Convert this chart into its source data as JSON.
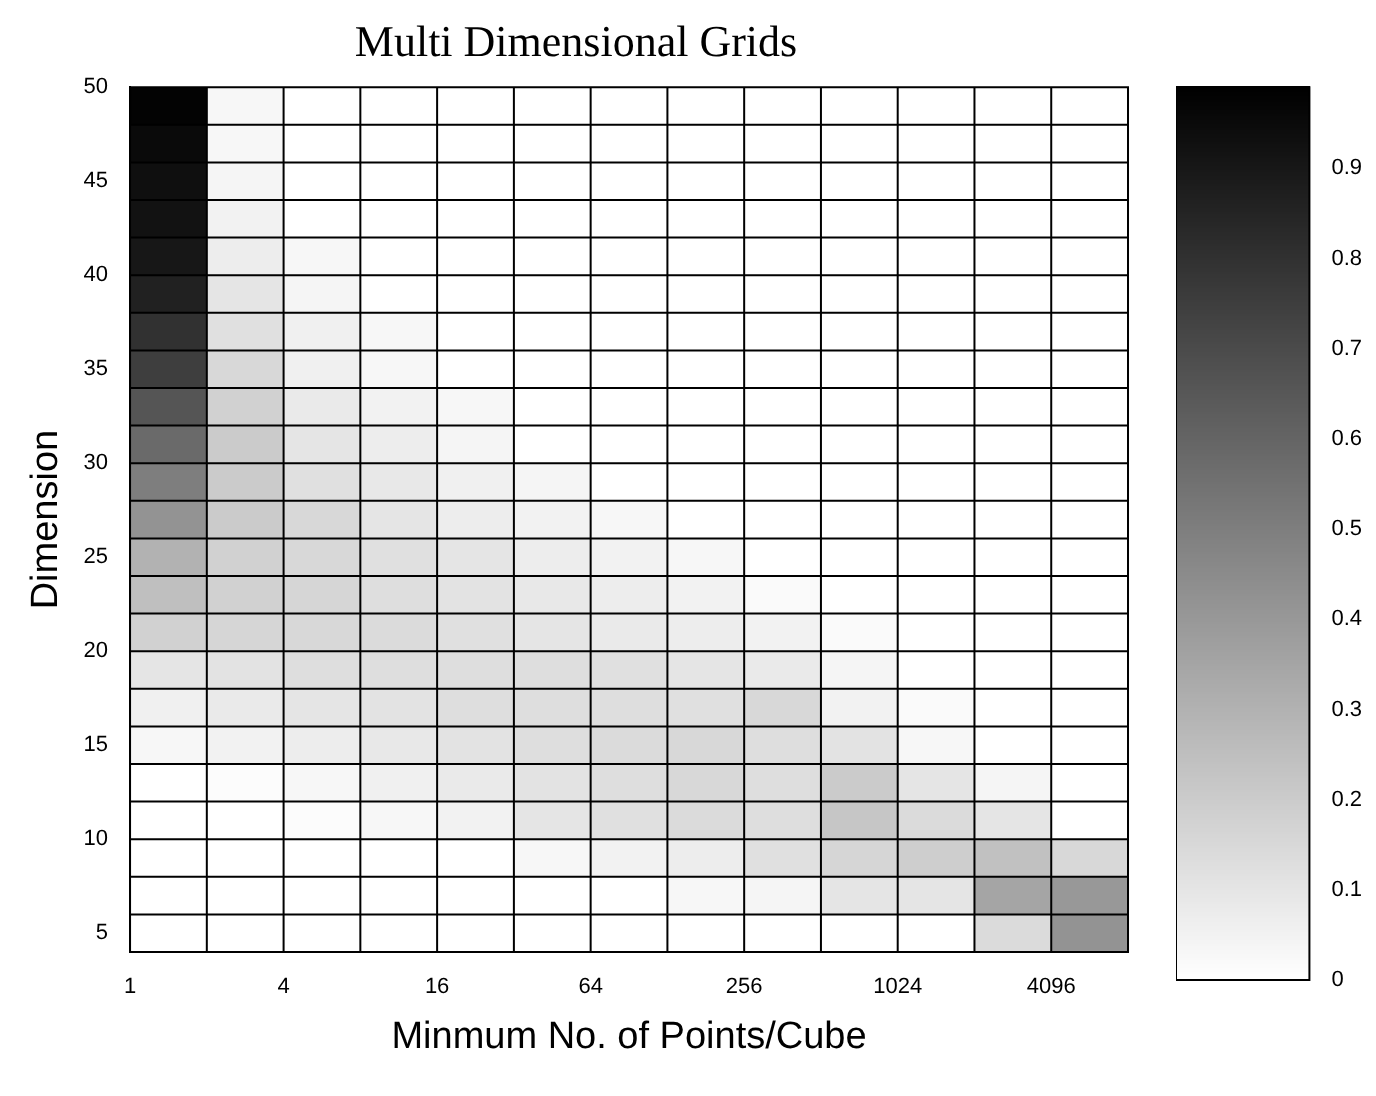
{
  "chart_data": {
    "type": "heatmap",
    "title": "Multi Dimensional Grids",
    "xlabel": "Minmum No. of Points/Cube",
    "ylabel": "Dimension",
    "x": [
      1.414,
      2.828,
      5.657,
      11.31,
      22.63,
      45.25,
      90.51,
      181,
      362,
      724.1,
      1448,
      2896,
      5793
    ],
    "log": "x",
    "xlim": [
      1,
      8192
    ],
    "xticks": [
      1,
      4,
      16,
      64,
      256,
      1024,
      4096
    ],
    "ylim": [
      4,
      50
    ],
    "yticks": [
      5,
      10,
      15,
      20,
      25,
      30,
      35,
      40,
      45,
      50
    ],
    "grid": true,
    "clim": [
      0,
      0.99
    ],
    "cticks": [
      0,
      0.1,
      0.2,
      0.3,
      0.4,
      0.5,
      0.6,
      0.7,
      0.8,
      0.9
    ],
    "cells": [
      [
        0.98,
        0.03,
        0,
        0,
        0,
        0,
        0,
        0,
        0,
        0,
        0,
        0,
        0
      ],
      [
        0.95,
        0.03,
        0,
        0,
        0,
        0,
        0,
        0,
        0,
        0,
        0,
        0,
        0
      ],
      [
        0.93,
        0.04,
        0,
        0,
        0,
        0,
        0,
        0,
        0,
        0,
        0,
        0,
        0
      ],
      [
        0.92,
        0.05,
        0,
        0,
        0,
        0,
        0,
        0,
        0,
        0,
        0,
        0,
        0
      ],
      [
        0.9,
        0.07,
        0.03,
        0,
        0,
        0,
        0,
        0,
        0,
        0,
        0,
        0,
        0
      ],
      [
        0.86,
        0.1,
        0.04,
        0,
        0,
        0,
        0,
        0,
        0,
        0,
        0,
        0,
        0
      ],
      [
        0.8,
        0.12,
        0.06,
        0.03,
        0,
        0,
        0,
        0,
        0,
        0,
        0,
        0,
        0
      ],
      [
        0.75,
        0.15,
        0.06,
        0.03,
        0,
        0,
        0,
        0,
        0,
        0,
        0,
        0,
        0
      ],
      [
        0.66,
        0.18,
        0.08,
        0.05,
        0.03,
        0,
        0,
        0,
        0,
        0,
        0,
        0,
        0
      ],
      [
        0.58,
        0.2,
        0.1,
        0.07,
        0.04,
        0,
        0,
        0,
        0,
        0,
        0,
        0,
        0
      ],
      [
        0.5,
        0.2,
        0.12,
        0.09,
        0.06,
        0.04,
        0,
        0,
        0,
        0,
        0,
        0,
        0
      ],
      [
        0.42,
        0.2,
        0.15,
        0.1,
        0.07,
        0.05,
        0.03,
        0,
        0,
        0,
        0,
        0,
        0
      ],
      [
        0.3,
        0.18,
        0.15,
        0.12,
        0.1,
        0.07,
        0.05,
        0.03,
        0,
        0,
        0,
        0,
        0
      ],
      [
        0.25,
        0.18,
        0.16,
        0.13,
        0.11,
        0.09,
        0.07,
        0.05,
        0.02,
        0,
        0,
        0,
        0
      ],
      [
        0.18,
        0.16,
        0.15,
        0.14,
        0.12,
        0.1,
        0.08,
        0.07,
        0.05,
        0.02,
        0,
        0,
        0
      ],
      [
        0.1,
        0.11,
        0.13,
        0.13,
        0.13,
        0.13,
        0.12,
        0.1,
        0.08,
        0.04,
        0,
        0,
        0
      ],
      [
        0.06,
        0.08,
        0.1,
        0.11,
        0.13,
        0.13,
        0.13,
        0.12,
        0.15,
        0.05,
        0.02,
        0,
        0
      ],
      [
        0.03,
        0.05,
        0.07,
        0.09,
        0.11,
        0.13,
        0.14,
        0.15,
        0.13,
        0.11,
        0.03,
        0,
        0
      ],
      [
        0,
        0.01,
        0.03,
        0.06,
        0.08,
        0.11,
        0.13,
        0.15,
        0.13,
        0.2,
        0.1,
        0.04,
        0
      ],
      [
        0,
        0,
        0.01,
        0.03,
        0.05,
        0.1,
        0.12,
        0.14,
        0.13,
        0.22,
        0.14,
        0.1,
        0
      ],
      [
        0,
        0,
        0,
        0,
        0,
        0.03,
        0.05,
        0.07,
        0.12,
        0.16,
        0.19,
        0.24,
        0.15
      ],
      [
        0,
        0,
        0,
        0,
        0,
        0,
        0,
        0.03,
        0.04,
        0.1,
        0.1,
        0.35,
        0.4
      ],
      [
        0,
        0,
        0,
        0,
        0,
        0,
        0,
        0,
        0,
        0,
        0,
        0.14,
        0.42
      ]
    ]
  }
}
